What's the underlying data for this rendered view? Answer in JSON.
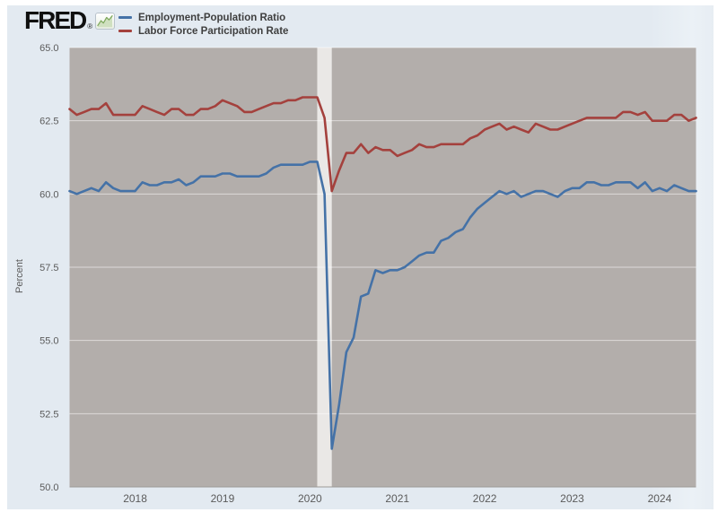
{
  "page": {
    "background": "#ffffff",
    "card_background": "#e3eaf1"
  },
  "header": {
    "logo_text": "FRED",
    "registered_mark": "®",
    "legend": [
      {
        "label": "Employment-Population Ratio",
        "color": "#4572a7"
      },
      {
        "label": "Labor Force Participation Rate",
        "color": "#a4413d"
      }
    ]
  },
  "chart_data": {
    "type": "line",
    "title": "",
    "xlabel": "",
    "ylabel": "Percent",
    "frequency": "monthly",
    "x_start": "2017-04",
    "x_end": "2024-06",
    "ylim": [
      50.0,
      65.0
    ],
    "ytick_step": 2.5,
    "ytick_labels": [
      "65.0",
      "62.5",
      "60.0",
      "57.5",
      "55.0",
      "52.5",
      "50.0"
    ],
    "xtick_labels": [
      "2018",
      "2019",
      "2020",
      "2021",
      "2022",
      "2023",
      "2024"
    ],
    "grid": true,
    "legend_position": "top-left",
    "plot_background": "#b3aeab",
    "gridline_color": "rgba(255,255,255,0.55)",
    "axis_line_color": "#9e9a97",
    "recession_band": {
      "from": "2020-02",
      "to": "2020-04",
      "color": "#eae8e6"
    },
    "series": [
      {
        "name": "Employment-Population Ratio",
        "color": "#4572a7",
        "values": [
          60.1,
          60.0,
          60.1,
          60.2,
          60.1,
          60.4,
          60.2,
          60.1,
          60.1,
          60.1,
          60.4,
          60.3,
          60.3,
          60.4,
          60.4,
          60.5,
          60.3,
          60.4,
          60.6,
          60.6,
          60.6,
          60.7,
          60.7,
          60.6,
          60.6,
          60.6,
          60.6,
          60.7,
          60.9,
          61.0,
          61.0,
          61.0,
          61.0,
          61.1,
          61.1,
          60.0,
          51.3,
          52.8,
          54.6,
          55.1,
          56.5,
          56.6,
          57.4,
          57.3,
          57.4,
          57.4,
          57.5,
          57.7,
          57.9,
          58.0,
          58.0,
          58.4,
          58.5,
          58.7,
          58.8,
          59.2,
          59.5,
          59.7,
          59.9,
          60.1,
          60.0,
          60.1,
          59.9,
          60.0,
          60.1,
          60.1,
          60.0,
          59.9,
          60.1,
          60.2,
          60.2,
          60.4,
          60.4,
          60.3,
          60.3,
          60.4,
          60.4,
          60.4,
          60.2,
          60.4,
          60.1,
          60.2,
          60.1,
          60.3,
          60.2,
          60.1,
          60.1
        ]
      },
      {
        "name": "Labor Force Participation Rate",
        "color": "#a4413d",
        "values": [
          62.9,
          62.7,
          62.8,
          62.9,
          62.9,
          63.1,
          62.7,
          62.7,
          62.7,
          62.7,
          63.0,
          62.9,
          62.8,
          62.7,
          62.9,
          62.9,
          62.7,
          62.7,
          62.9,
          62.9,
          63.0,
          63.2,
          63.1,
          63.0,
          62.8,
          62.8,
          62.9,
          63.0,
          63.1,
          63.1,
          63.2,
          63.2,
          63.3,
          63.3,
          63.3,
          62.6,
          60.1,
          60.8,
          61.4,
          61.4,
          61.7,
          61.4,
          61.6,
          61.5,
          61.5,
          61.3,
          61.4,
          61.5,
          61.7,
          61.6,
          61.6,
          61.7,
          61.7,
          61.7,
          61.7,
          61.9,
          62.0,
          62.2,
          62.3,
          62.4,
          62.2,
          62.3,
          62.2,
          62.1,
          62.4,
          62.3,
          62.2,
          62.2,
          62.3,
          62.4,
          62.5,
          62.6,
          62.6,
          62.6,
          62.6,
          62.6,
          62.8,
          62.8,
          62.7,
          62.8,
          62.5,
          62.5,
          62.5,
          62.7,
          62.7,
          62.5,
          62.6
        ]
      }
    ]
  }
}
